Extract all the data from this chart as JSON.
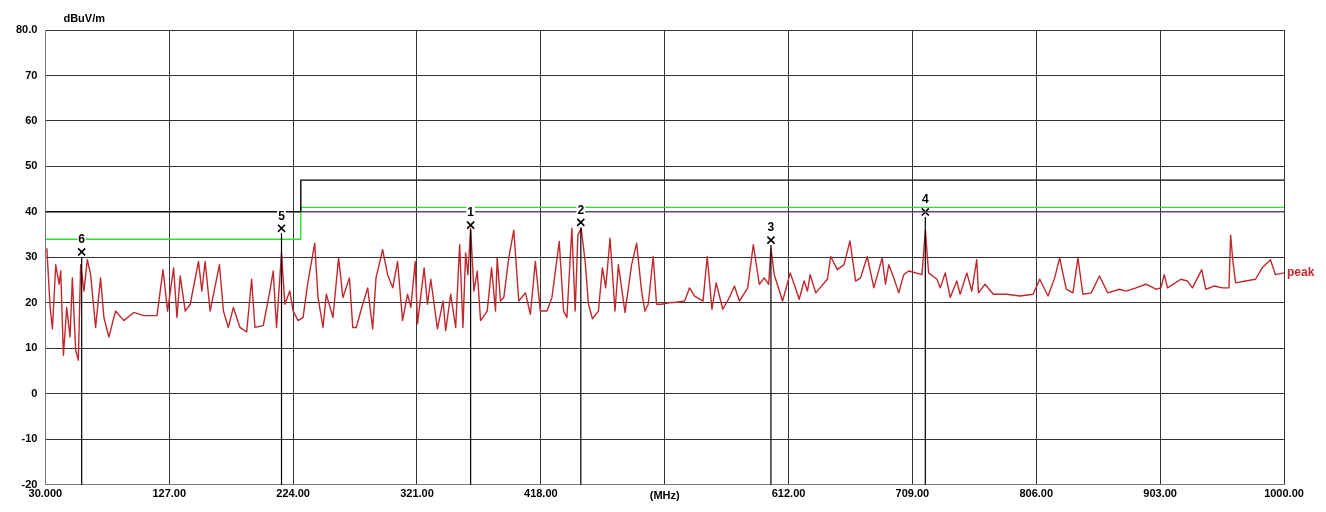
{
  "chart_data": {
    "type": "line",
    "ylabel": "dBuV/m",
    "xlabel": "(MHz)",
    "xlim": [
      30,
      1000
    ],
    "xticks": [
      {
        "value": 30,
        "label": "30.000"
      },
      {
        "value": 127,
        "label": "127.00"
      },
      {
        "value": 224,
        "label": "224.00"
      },
      {
        "value": 321,
        "label": "321.00"
      },
      {
        "value": 418,
        "label": "418.00"
      },
      {
        "value": 515,
        "label": null
      },
      {
        "value": 612,
        "label": "612.00"
      },
      {
        "value": 709,
        "label": "709.00"
      },
      {
        "value": 806,
        "label": "806.00"
      },
      {
        "value": 903,
        "label": "903.00"
      },
      {
        "value": 1000,
        "label": "1000.00"
      }
    ],
    "ylim": [
      -20,
      80
    ],
    "yticks": [
      -20,
      -10,
      0,
      10,
      20,
      30,
      40,
      50,
      60,
      {
        "value": 70,
        "label": "70"
      },
      {
        "value": 80,
        "label": "80.0"
      }
    ],
    "grid": true,
    "series": [
      {
        "color": "#000000",
        "x": [
          30,
          230,
          230,
          1000
        ],
        "values": [
          40,
          40,
          47,
          47
        ]
      },
      {
        "color": "#33dd33",
        "x": [
          30,
          230,
          230,
          1000
        ],
        "values": [
          34,
          34,
          41,
          41
        ]
      },
      {
        "color": "#6a4c8c",
        "x": [
          230,
          1000
        ],
        "values": [
          40,
          40
        ]
      },
      {
        "name": "peak",
        "color": "#c0282d",
        "x": [
          31.1,
          33.7,
          35.5,
          38.1,
          40.7,
          42.0,
          44.1,
          46.7,
          49.3,
          51.1,
          53.7,
          55.8,
          57.6,
          60.2,
          62.8,
          65.4,
          69.3,
          73.2,
          75.8,
          79.7,
          84.9,
          91.4,
          99.2,
          107.0,
          117.4,
          122.1,
          125.7,
          130.4,
          133.0,
          135.6,
          139.5,
          143.4,
          149.9,
          152.5,
          155.1,
          159.0,
          166.3,
          169.4,
          173.3,
          177.2,
          182.4,
          187.6,
          191.5,
          194.1,
          200.6,
          205.8,
          208.4,
          211.0,
          214.9,
          217.5,
          221.4,
          224.0,
          227.9,
          231.8,
          235.7,
          240.9,
          243.5,
          247.4,
          250.0,
          255.2,
          259.6,
          263.0,
          268.1,
          270.7,
          273.4,
          278.5,
          282.4,
          286.3,
          288.9,
          294.1,
          298.0,
          302.0,
          305.8,
          309.7,
          313.6,
          316.2,
          319.6,
          321.4,
          326.6,
          329.2,
          331.8,
          337.0,
          341.4,
          343.5,
          347.4,
          351.3,
          354.4,
          357.0,
          359.1,
          360.9,
          363.0,
          365.6,
          368.2,
          370.8,
          376.0,
          379.4,
          382.5,
          383.8,
          386.4,
          389.0,
          392.9,
          396.8,
          400.7,
          405.9,
          409.8,
          413.7,
          417.6,
          422.8,
          426.7,
          432.4,
          435.8,
          438.4,
          442.3,
          444.9,
          447.0,
          449.6,
          452.7,
          455.3,
          458.4,
          463.1,
          466.2,
          468.8,
          472.2,
          476.1,
          478.7,
          483.9,
          489.1,
          493.0,
          496.9,
          499.5,
          502.1,
          506.0,
          508.6,
          512.5,
          520.3,
          522.9,
          530.6,
          534.5,
          538.4,
          545.0,
          548.3,
          552.0,
          555.3,
          560.5,
          565.7,
          569.6,
          573.5,
          580.0,
          584.4,
          589.1,
          593.0,
          596.4,
          598.2,
          600.8,
          607.3,
          613.3,
          616.4,
          620.3,
          624.2,
          626.8,
          628.9,
          633.3,
          642.4,
          645.0,
          650.2,
          655.4,
          660.1,
          664.5,
          668.4,
          673.6,
          678.8,
          685.3,
          687.9,
          690.5,
          694.4,
          698.3,
          702.2,
          706.1,
          716.5,
          719.1,
          721.7,
          728.2,
          730.8,
          734.7,
          738.6,
          743.8,
          746.4,
          751.6,
          755.5,
          759.4,
          760.7,
          765.9,
          772.4,
          782.7,
          793.1,
          803.5,
          808.7,
          815.2,
          820.4,
          824.3,
          829.5,
          834.7,
          838.6,
          842.5,
          849.0,
          855.5,
          862.0,
          871.1,
          876.3,
          884.1,
          891.9,
          899.7,
          903.6,
          906.2,
          908.8,
          919.2,
          924.4,
          928.3,
          935.6,
          938.7,
          945.2,
          951.7,
          956.9,
          958.2,
          960.0,
          962.1,
          969.9,
          977.7,
          982.9,
          989.4,
          993.3,
          1000.0
        ],
        "values": [
          32.0,
          19.0,
          14.3,
          28.4,
          24.1,
          27.0,
          8.5,
          19.0,
          12.5,
          25.5,
          9.6,
          7.4,
          28.4,
          22.6,
          29.5,
          26.2,
          14.6,
          25.5,
          16.8,
          12.5,
          18.2,
          16.1,
          17.9,
          17.2,
          17.2,
          27.3,
          18.2,
          27.7,
          16.8,
          25.9,
          18.2,
          19.7,
          29.1,
          22.6,
          29.1,
          18.2,
          28.4,
          18.2,
          14.6,
          19.0,
          14.6,
          13.6,
          25.2,
          14.6,
          15.0,
          22.6,
          27.0,
          14.6,
          31.0,
          19.7,
          22.6,
          18.2,
          16.1,
          16.8,
          24.8,
          33.1,
          21.2,
          14.6,
          21.9,
          16.8,
          29.9,
          21.2,
          25.5,
          14.6,
          14.6,
          19.7,
          23.3,
          14.3,
          25.5,
          31.7,
          26.2,
          23.3,
          29.1,
          16.1,
          21.9,
          19.0,
          29.1,
          15.4,
          27.7,
          19.7,
          25.2,
          14.3,
          20.4,
          13.9,
          21.9,
          14.6,
          32.8,
          14.6,
          31.0,
          26.2,
          36.4,
          22.6,
          27.0,
          16.1,
          18.2,
          27.7,
          18.2,
          29.9,
          20.4,
          21.2,
          29.9,
          36.0,
          20.4,
          22.2,
          17.5,
          29.1,
          18.2,
          18.2,
          21.2,
          33.5,
          18.2,
          16.8,
          36.4,
          18.2,
          34.9,
          36.4,
          29.1,
          19.7,
          16.5,
          18.2,
          27.7,
          23.3,
          34.2,
          18.2,
          28.4,
          17.9,
          28.4,
          33.1,
          22.6,
          18.2,
          19.7,
          30.2,
          19.7,
          19.7,
          20.1,
          20.1,
          20.4,
          23.3,
          21.5,
          20.4,
          30.2,
          18.6,
          24.4,
          18.6,
          21.2,
          23.7,
          20.4,
          23.3,
          32.8,
          24.1,
          25.5,
          24.1,
          32.0,
          26.2,
          20.4,
          26.6,
          24.1,
          20.8,
          24.8,
          22.6,
          26.2,
          22.2,
          25.2,
          30.2,
          27.3,
          28.4,
          33.6,
          24.8,
          25.5,
          30.2,
          23.3,
          29.9,
          24.1,
          28.4,
          25.5,
          22.2,
          26.2,
          27.0,
          26.2,
          36.0,
          26.6,
          25.2,
          23.3,
          26.6,
          21.2,
          24.8,
          21.9,
          26.6,
          22.6,
          29.5,
          22.2,
          24.1,
          21.9,
          21.9,
          21.5,
          21.9,
          25.2,
          21.5,
          25.5,
          29.9,
          23.0,
          22.2,
          29.9,
          21.9,
          22.2,
          25.9,
          22.2,
          23.0,
          22.6,
          23.3,
          24.1,
          23.0,
          23.3,
          26.2,
          23.3,
          25.2,
          24.8,
          23.3,
          27.3,
          23.0,
          23.7,
          23.3,
          23.3,
          34.9,
          29.1,
          24.4,
          24.8,
          25.2,
          27.7,
          29.5,
          26.2,
          26.6
        ]
      },
      {
        "type": "scatter",
        "color": "#000000",
        "marker": "cross",
        "x": [
          363.0,
          449.3,
          598.2,
          719.1,
          214.9,
          58.4
        ],
        "values": [
          37.1,
          37.7,
          33.8,
          40.0,
          36.4,
          31.2
        ]
      }
    ],
    "annotations": [
      {
        "text": "1",
        "x": 363.0,
        "y": 37.1
      },
      {
        "text": "2",
        "x": 449.3,
        "y": 37.7
      },
      {
        "text": "3",
        "x": 598.2,
        "y": 33.8
      },
      {
        "text": "4",
        "x": 719.1,
        "y": 40.0
      },
      {
        "text": "5",
        "x": 214.9,
        "y": 36.4
      },
      {
        "text": "6",
        "x": 58.4,
        "y": 31.2
      }
    ]
  }
}
